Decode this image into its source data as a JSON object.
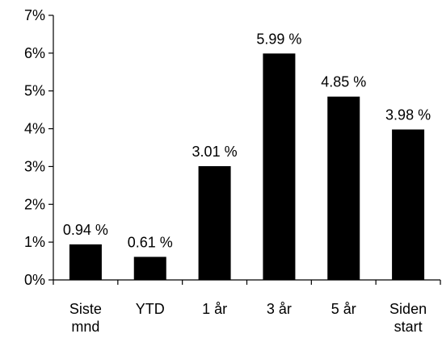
{
  "chart_data": {
    "type": "bar",
    "categories": [
      [
        "Siste",
        "mnd"
      ],
      [
        "YTD"
      ],
      [
        "1 år"
      ],
      [
        "3 år"
      ],
      [
        "5 år"
      ],
      [
        "Siden",
        "start"
      ]
    ],
    "values": [
      0.94,
      0.61,
      3.01,
      5.99,
      4.85,
      3.98
    ],
    "data_labels": [
      "0.94 %",
      "0.61 %",
      "3.01 %",
      "5.99 %",
      "4.85 %",
      "3.98 %"
    ],
    "y_ticks": [
      "0%",
      "1%",
      "2%",
      "3%",
      "4%",
      "5%",
      "6%",
      "7%"
    ],
    "ylim": [
      0,
      7
    ],
    "title": "",
    "xlabel": "",
    "ylabel": "",
    "grid": false,
    "bar_color": "#000000"
  }
}
